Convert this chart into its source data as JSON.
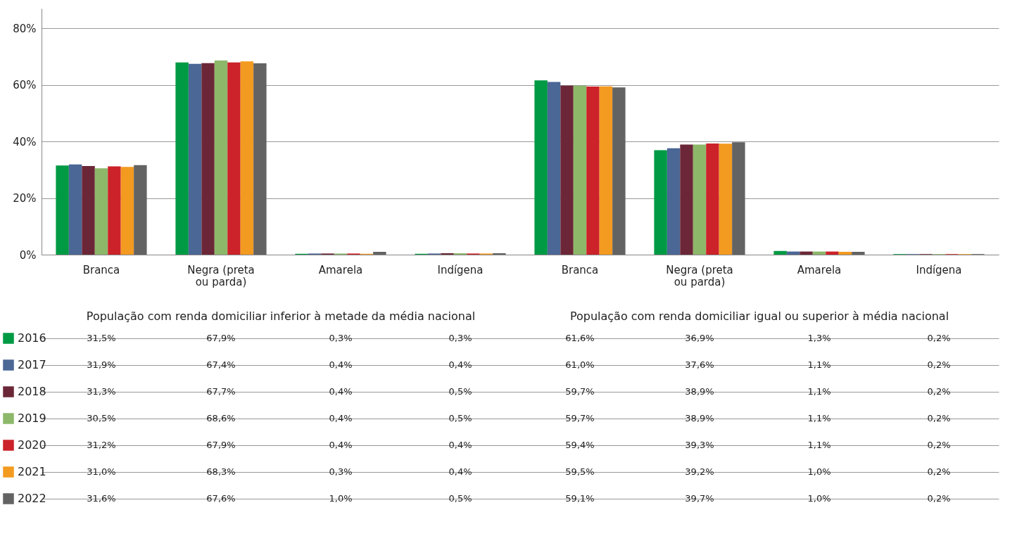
{
  "chart_data": {
    "type": "bar",
    "categories": [
      "Branca",
      "Negra (preta ou parda)",
      "Amarela",
      "Indígena",
      "Branca",
      "Negra (preta ou parda)",
      "Amarela",
      "Indígena"
    ],
    "annotations": [
      "População com renda domiciliar inferior à metade da média nacional",
      "População com renda domiciliar igual ou superior à média nacional"
    ],
    "series": [
      {
        "name": "2016",
        "color": "#009a44",
        "values": [
          31.5,
          67.9,
          0.3,
          0.3,
          61.6,
          36.9,
          1.3,
          0.2
        ],
        "value_labels": [
          "31,5%",
          "67,9%",
          "0,3%",
          "0,3%",
          "61,6%",
          "36,9%",
          "1,3%",
          "0,2%"
        ]
      },
      {
        "name": "2017",
        "color": "#4a6796",
        "values": [
          31.9,
          67.4,
          0.4,
          0.4,
          61.0,
          37.6,
          1.1,
          0.2
        ],
        "value_labels": [
          "31,9%",
          "67,4%",
          "0,4%",
          "0,4%",
          "61,0%",
          "37,6%",
          "1,1%",
          "0,2%"
        ]
      },
      {
        "name": "2018",
        "color": "#6b2737",
        "values": [
          31.3,
          67.7,
          0.4,
          0.5,
          59.7,
          38.9,
          1.1,
          0.2
        ],
        "value_labels": [
          "31,3%",
          "67,7%",
          "0,4%",
          "0,5%",
          "59,7%",
          "38,9%",
          "1,1%",
          "0,2%"
        ]
      },
      {
        "name": "2019",
        "color": "#8db86a",
        "values": [
          30.5,
          68.6,
          0.4,
          0.5,
          59.7,
          38.9,
          1.1,
          0.2
        ],
        "value_labels": [
          "30,5%",
          "68,6%",
          "0,4%",
          "0,5%",
          "59,7%",
          "38,9%",
          "1,1%",
          "0,2%"
        ]
      },
      {
        "name": "2020",
        "color": "#cc2229",
        "values": [
          31.2,
          67.9,
          0.4,
          0.4,
          59.4,
          39.3,
          1.1,
          0.2
        ],
        "value_labels": [
          "31,2%",
          "67,9%",
          "0,4%",
          "0,4%",
          "59,4%",
          "39,3%",
          "1,1%",
          "0,2%"
        ]
      },
      {
        "name": "2021",
        "color": "#f39a20",
        "values": [
          31.0,
          68.3,
          0.3,
          0.4,
          59.5,
          39.2,
          1.0,
          0.2
        ],
        "value_labels": [
          "31,0%",
          "68,3%",
          "0,3%",
          "0,4%",
          "59,5%",
          "39,2%",
          "1,0%",
          "0,2%"
        ]
      },
      {
        "name": "2022",
        "color": "#636363",
        "values": [
          31.6,
          67.6,
          1.0,
          0.5,
          59.1,
          39.7,
          1.0,
          0.2
        ],
        "value_labels": [
          "31,6%",
          "67,6%",
          "1,0%",
          "0,5%",
          "59,1%",
          "39,7%",
          "1,0%",
          "0,2%"
        ]
      }
    ],
    "ylim": [
      0,
      87
    ],
    "yticks": [
      {
        "value": 0,
        "label": "0%"
      },
      {
        "value": 20,
        "label": "20%"
      },
      {
        "value": 40,
        "label": "40%"
      },
      {
        "value": 60,
        "label": "60%"
      },
      {
        "value": 80,
        "label": "80%"
      }
    ],
    "grid": "y",
    "legend": "bottom left"
  }
}
